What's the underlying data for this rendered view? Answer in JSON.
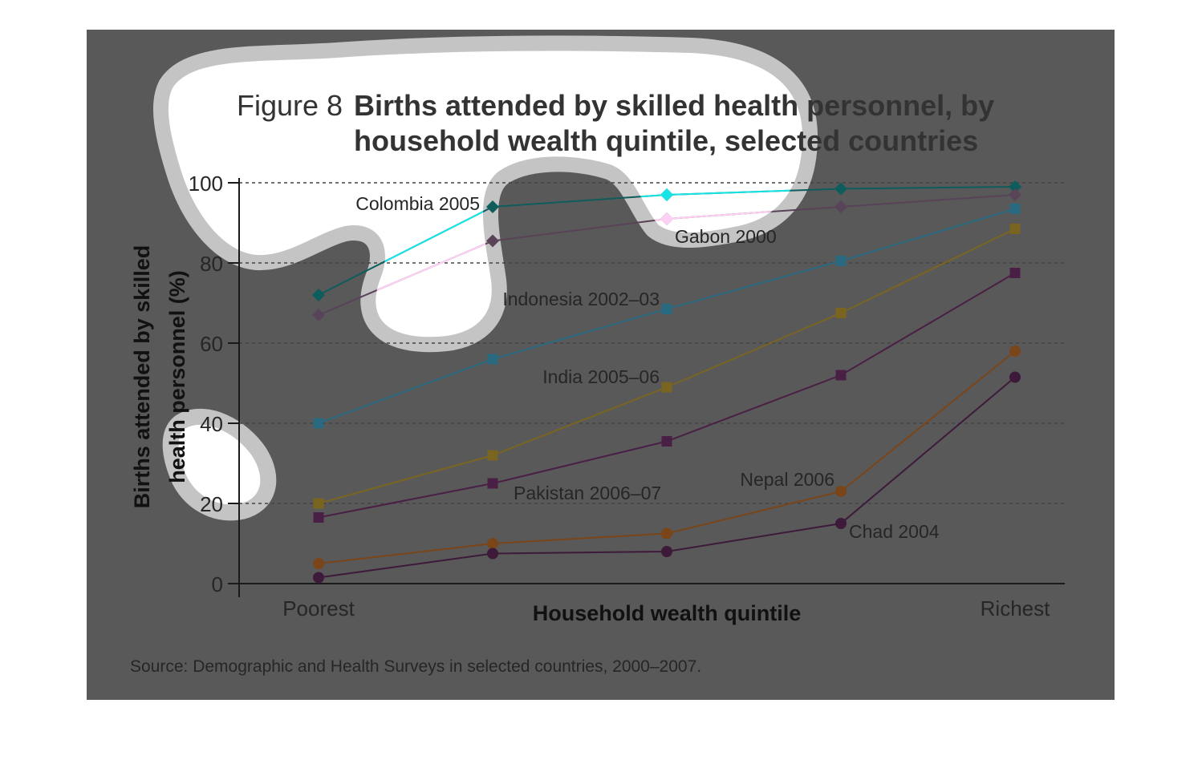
{
  "figure": {
    "number_label": "Figure 8",
    "title_line1": "Births attended by skilled health personnel, by",
    "title_line2": "household wealth quintile, selected countries"
  },
  "source": "Source: Demographic and Health Surveys in selected countries, 2000–2007.",
  "chart_data": {
    "type": "line",
    "x_categories": [
      "Poorest",
      "",
      "",
      "",
      "Richest"
    ],
    "xlabel": "Household wealth quintile",
    "ylabel_line1": "Births attended by skilled",
    "ylabel_line2": "health personnel (%)",
    "ylim": [
      0,
      100
    ],
    "yticks": [
      "0",
      "20",
      "40",
      "60",
      "80",
      "100"
    ],
    "grid": "horizontal dashed",
    "series": [
      {
        "name": "Colombia 2005",
        "color": "#0e5c5c",
        "marker": "diamond",
        "values": [
          72,
          94,
          97,
          98.5,
          99
        ],
        "label_pos": "left"
      },
      {
        "name": "Gabon 2000",
        "color": "#584358",
        "marker": "diamond",
        "values": [
          67,
          85.5,
          91,
          94,
          97
        ],
        "label_pos": "below"
      },
      {
        "name": "Indonesia 2002–03",
        "color": "#2a6a80",
        "marker": "square",
        "values": [
          40,
          56,
          68.5,
          80.5,
          93.5
        ],
        "label_pos": "above"
      },
      {
        "name": "India 2005–06",
        "color": "#7a6520",
        "marker": "square",
        "values": [
          20,
          32,
          49,
          67.5,
          88.5
        ],
        "label_pos": "above"
      },
      {
        "name": "Pakistan 2006–07",
        "color": "#4a1f45",
        "marker": "square",
        "values": [
          16.5,
          25,
          35.5,
          52,
          77.5
        ],
        "label_pos": "below"
      },
      {
        "name": "Nepal 2006",
        "color": "#7a4518",
        "marker": "circle",
        "values": [
          5,
          10,
          12.5,
          23,
          58
        ],
        "label_pos": "above"
      },
      {
        "name": "Chad 2004",
        "color": "#3e1a3a",
        "marker": "circle",
        "values": [
          1.5,
          7.5,
          8,
          15,
          51.5
        ],
        "label_pos": "below"
      }
    ]
  },
  "overlay": {
    "blob_fill": "#ffffff",
    "blob_halo": "#c4c4c4",
    "highlight_colors": {
      "Colombia 2005": "#17e5e5",
      "Gabon 2000": "#ffd0f5"
    }
  }
}
